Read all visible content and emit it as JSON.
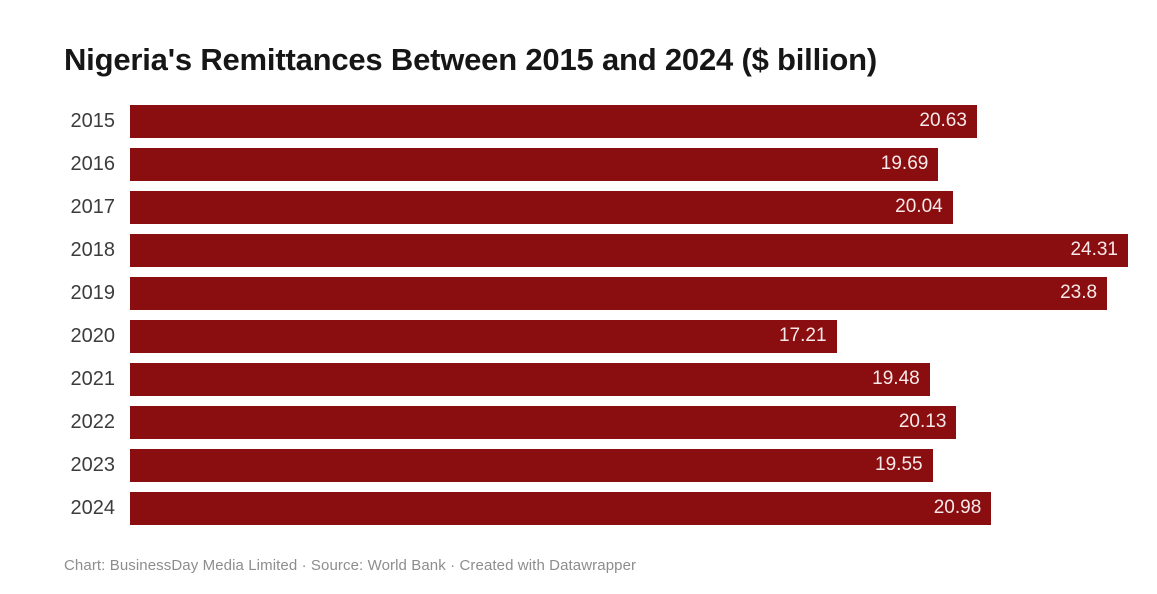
{
  "chart_data": {
    "type": "bar",
    "orientation": "horizontal",
    "title": "Nigeria's Remittances Between 2015 and 2024 ($ billion)",
    "categories": [
      "2015",
      "2016",
      "2017",
      "2018",
      "2019",
      "2020",
      "2021",
      "2022",
      "2023",
      "2024"
    ],
    "values": [
      20.63,
      19.69,
      20.04,
      24.31,
      23.8,
      17.21,
      19.48,
      20.13,
      19.55,
      20.98
    ],
    "value_labels": [
      "20.63",
      "19.69",
      "20.04",
      "24.31",
      "23.8",
      "17.21",
      "19.48",
      "20.13",
      "19.55",
      "20.98"
    ],
    "xlim": [
      0,
      24.31
    ],
    "unit": "$ billion",
    "bar_color": "#8a0e10",
    "value_label_color": "#f7e9e9",
    "value_label_position": "inside-end",
    "legend": "none",
    "grid": "off"
  },
  "footer": {
    "text": "Chart: BusinessDay Media Limited · Source: World Bank · Created with Datawrapper"
  }
}
